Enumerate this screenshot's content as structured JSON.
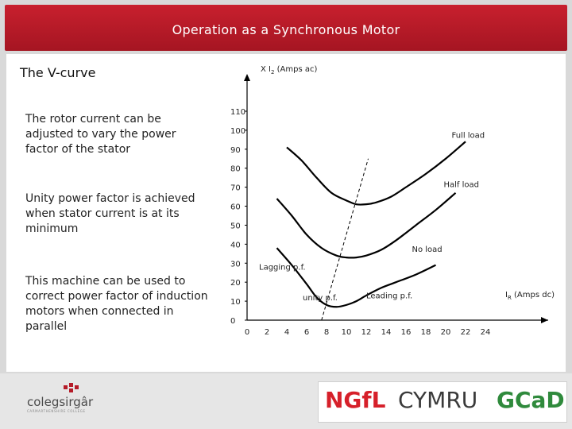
{
  "slide": {
    "title": "Operation as a Synchronous Motor",
    "heading": "The V-curve",
    "paragraphs": [
      "The rotor current can be adjusted to vary the power factor of the stator",
      "Unity power factor is achieved when stator current is at its minimum",
      "This machine can be used to correct power factor of induction motors when connected in parallel"
    ]
  },
  "footer": {
    "left_logo": "colegsirgâr",
    "left_logo_sub": "CARMARTHENSHIRE COLLEGE",
    "right_logo": [
      "NGfL",
      "CYMRU",
      "GCaD"
    ]
  },
  "colors": {
    "header_red": "#b51b28",
    "ngfl_red": "#d6202a",
    "gcad_green": "#2f8a3c",
    "cymru_dark": "#3a3a3a"
  },
  "chart_data": {
    "type": "line",
    "ylabel": "X I₂ (Amps ac)",
    "xlabel": "I_R (Amps dc)",
    "xlabel_main": "I",
    "xlabel_sub": "R",
    "xlabel_rest": " (Amps dc)",
    "ylabel_prefix": "X I",
    "ylabel_sub": "2",
    "ylabel_rest": " (Amps ac)",
    "xlim": [
      0,
      24
    ],
    "ylim": [
      0,
      110
    ],
    "xticks": [
      0,
      2,
      4,
      6,
      8,
      10,
      12,
      14,
      16,
      18,
      20,
      22,
      24
    ],
    "yticks": [
      0,
      10,
      20,
      30,
      40,
      50,
      60,
      70,
      80,
      90,
      100,
      110
    ],
    "series": [
      {
        "name": "No load",
        "x": [
          3.0,
          4.5,
          6.0,
          7.0,
          8.0,
          9.0,
          10.0,
          11.0,
          12.0,
          13.5,
          15.0,
          17.0,
          19.0
        ],
        "y": [
          38.0,
          29.0,
          19.0,
          12.0,
          8.0,
          7.0,
          8.0,
          10.0,
          13.0,
          17.0,
          20.0,
          24.0,
          29.0
        ]
      },
      {
        "name": "Half load",
        "x": [
          3.0,
          4.5,
          6.0,
          7.5,
          9.0,
          10.0,
          11.0,
          12.0,
          13.5,
          15.0,
          17.0,
          19.0,
          21.0
        ],
        "y": [
          64.0,
          55.0,
          45.0,
          38.0,
          34.0,
          33.0,
          33.0,
          34.0,
          37.0,
          42.0,
          50.0,
          58.0,
          67.0
        ]
      },
      {
        "name": "Full load",
        "x": [
          4.0,
          5.5,
          7.0,
          8.5,
          10.0,
          11.0,
          12.0,
          13.0,
          14.5,
          16.0,
          18.0,
          20.0,
          22.0
        ],
        "y": [
          91.0,
          84.0,
          75.0,
          67.0,
          63.0,
          61.0,
          61.0,
          62.0,
          65.0,
          70.0,
          77.0,
          85.0,
          94.0
        ]
      }
    ],
    "divider_line": {
      "x": [
        7.5,
        12.2
      ],
      "y": [
        0,
        85
      ]
    },
    "annotations": [
      {
        "text": "Full load",
        "x": 20.6,
        "y": 96.0
      },
      {
        "text": "Half load",
        "x": 19.8,
        "y": 70.0
      },
      {
        "text": "No load",
        "x": 16.6,
        "y": 36.0
      },
      {
        "text": "Lagging p.f.",
        "x": 1.2,
        "y": 26.5
      },
      {
        "text": "unity p.f.",
        "x": 5.6,
        "y": 10.5
      },
      {
        "text": "Leading p.f.",
        "x": 12.0,
        "y": 11.5
      }
    ],
    "grid": false,
    "legend": "none"
  }
}
